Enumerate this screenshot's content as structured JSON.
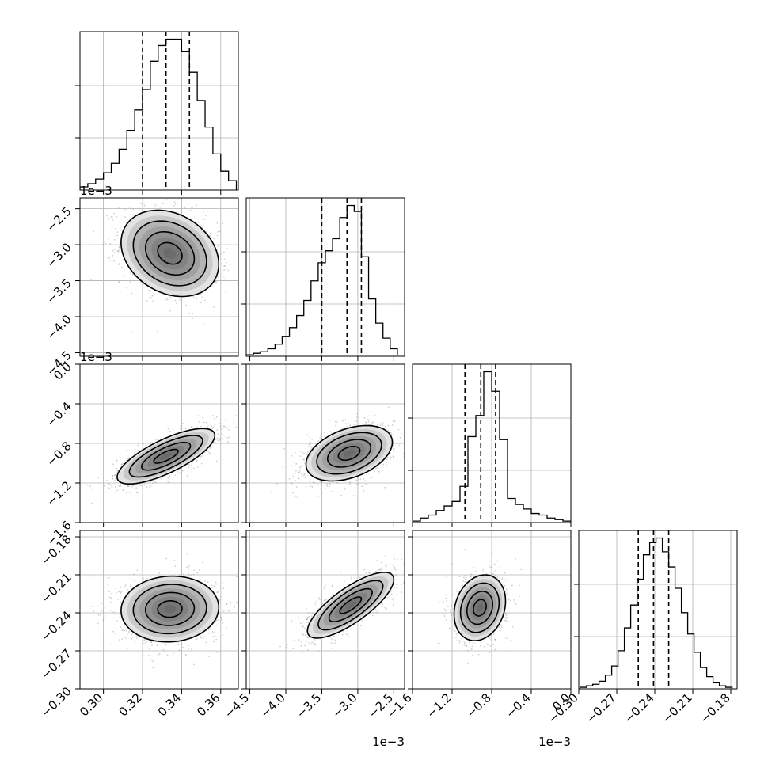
{
  "chart_data": {
    "type": "corner-plot",
    "grid": true,
    "colors": {
      "line": "#000000",
      "grid": "#b0b0b0",
      "points": "#9a9a9a",
      "fill": "#2a2a2a"
    },
    "parameters": [
      {
        "range": [
          0.288,
          0.369
        ],
        "ticks": [
          0.3,
          0.32,
          0.34,
          0.36
        ],
        "tick_labels": [
          "0.30",
          "0.32",
          "0.34",
          "0.36"
        ],
        "offset_text": "",
        "quantiles": [
          0.32,
          0.332,
          0.344
        ],
        "peak": 0.334,
        "sigma": 0.0125
      },
      {
        "range": [
          -4.55,
          -2.35
        ],
        "ticks": [
          -4.5,
          -4.0,
          -3.5,
          -3.0,
          -2.5
        ],
        "tick_labels": [
          "−4.5",
          "−4.0",
          "−3.5",
          "−3.0",
          "−2.5"
        ],
        "offset_text": "1e−3",
        "quantiles": [
          -3.5,
          -3.15,
          -2.95
        ],
        "peak": -3.1,
        "sigma": 0.3
      },
      {
        "range": [
          -1.6,
          0.0
        ],
        "ticks": [
          -1.6,
          -1.2,
          -0.8,
          -0.4,
          0.0
        ],
        "tick_labels": [
          "−1.6",
          "−1.2",
          "−0.8",
          "−0.4",
          "0.0"
        ],
        "offset_text": "1e−3",
        "quantiles": [
          -1.07,
          -0.91,
          -0.76
        ],
        "peak": -0.91,
        "sigma": 0.13
      },
      {
        "range": [
          -0.3,
          -0.175
        ],
        "ticks": [
          -0.3,
          -0.27,
          -0.24,
          -0.21,
          -0.18
        ],
        "tick_labels": [
          "−0.30",
          "−0.27",
          "−0.24",
          "−0.21",
          "−0.18"
        ],
        "offset_text": "",
        "quantiles": [
          -0.253,
          -0.241,
          -0.229
        ],
        "peak": -0.24,
        "sigma": 0.012
      }
    ],
    "histograms": [
      {
        "bin_edges": [
          0.288,
          0.292,
          0.296,
          0.3,
          0.304,
          0.308,
          0.312,
          0.316,
          0.32,
          0.324,
          0.328,
          0.332,
          0.336,
          0.34,
          0.344,
          0.348,
          0.352,
          0.356,
          0.36,
          0.364,
          0.368
        ],
        "counts": [
          2,
          4,
          7,
          11,
          17,
          26,
          38,
          51,
          64,
          82,
          92,
          96,
          96,
          88,
          75,
          57,
          40,
          23,
          12,
          6
        ]
      },
      {
        "bin_edges": [
          -4.55,
          -4.45,
          -4.35,
          -4.25,
          -4.15,
          -4.05,
          -3.95,
          -3.85,
          -3.75,
          -3.65,
          -3.55,
          -3.45,
          -3.35,
          -3.25,
          -3.15,
          -3.05,
          -2.95,
          -2.85,
          -2.75,
          -2.65,
          -2.55,
          -2.45
        ],
        "counts": [
          1,
          2,
          3,
          5,
          8,
          13,
          19,
          27,
          37,
          50,
          62,
          70,
          78,
          92,
          100,
          96,
          66,
          38,
          22,
          12,
          5,
          1
        ]
      },
      {
        "bin_edges": [
          -1.6,
          -1.52,
          -1.44,
          -1.36,
          -1.28,
          -1.2,
          -1.12,
          -1.04,
          -0.96,
          -0.88,
          -0.8,
          -0.72,
          -0.64,
          -0.56,
          -0.48,
          -0.4,
          -0.32,
          -0.24,
          -0.16,
          -0.08,
          0.0
        ],
        "counts": [
          1,
          3,
          5,
          8,
          11,
          14,
          24,
          57,
          71,
          100,
          87,
          55,
          16,
          12,
          9,
          6,
          5,
          3,
          2,
          1
        ]
      },
      {
        "bin_edges": [
          -0.299,
          -0.294,
          -0.289,
          -0.284,
          -0.279,
          -0.274,
          -0.269,
          -0.264,
          -0.259,
          -0.254,
          -0.249,
          -0.244,
          -0.239,
          -0.234,
          -0.229,
          -0.224,
          -0.219,
          -0.214,
          -0.209,
          -0.204,
          -0.199,
          -0.194,
          -0.189,
          -0.184,
          -0.179
        ],
        "counts": [
          1,
          2,
          3,
          5,
          9,
          15,
          25,
          40,
          55,
          72,
          88,
          96,
          99,
          90,
          80,
          66,
          50,
          36,
          24,
          14,
          8,
          4,
          2,
          1
        ]
      }
    ],
    "pairs": [
      {
        "x": 0,
        "y": 1,
        "center": [
          0.334,
          -3.12
        ],
        "spread": [
          0.0125,
          0.3
        ],
        "corr": -0.25
      },
      {
        "x": 0,
        "y": 2,
        "center": [
          0.332,
          -0.93
        ],
        "spread": [
          0.0125,
          0.14
        ],
        "corr": 0.75
      },
      {
        "x": 1,
        "y": 2,
        "center": [
          -3.12,
          -0.9
        ],
        "spread": [
          0.3,
          0.14
        ],
        "corr": 0.4
      },
      {
        "x": 0,
        "y": 3,
        "center": [
          0.334,
          -0.237
        ],
        "spread": [
          0.0125,
          0.013
        ],
        "corr": 0.05
      },
      {
        "x": 1,
        "y": 3,
        "center": [
          -3.1,
          -0.234
        ],
        "spread": [
          0.3,
          0.013
        ],
        "corr": 0.78
      },
      {
        "x": 2,
        "y": 3,
        "center": [
          -0.92,
          -0.236
        ],
        "spread": [
          0.13,
          0.013
        ],
        "corr": 0.2
      }
    ],
    "contour_levels_sigma": [
      0.5,
      1.0,
      1.5,
      2.0
    ]
  }
}
